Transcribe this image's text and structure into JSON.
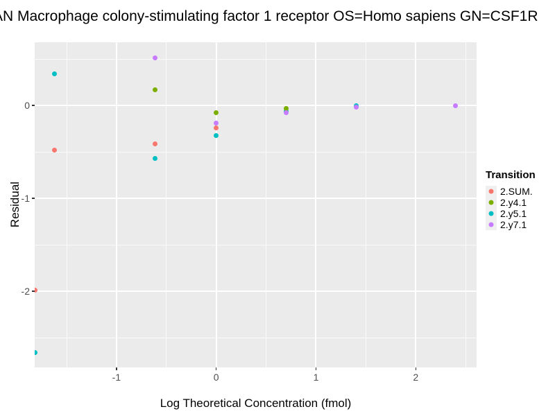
{
  "title": "AN Macrophage colony-stimulating factor 1 receptor OS=Homo sapiens GN=CSF1R",
  "chart_data": {
    "type": "scatter",
    "title": "AN Macrophage colony-stimulating factor 1 receptor OS=Homo sapiens GN=CSF1R",
    "xlabel": "Log Theoretical Concentration (fmol)",
    "ylabel": "Residual",
    "xlim": [
      -1.82,
      2.61
    ],
    "ylim": [
      -2.82,
      0.68
    ],
    "x_major_ticks": [
      -1,
      0,
      1,
      2
    ],
    "x_minor_ticks": [
      -1.5,
      -0.5,
      0.5,
      1.5,
      2.5
    ],
    "y_major_ticks": [
      0,
      -1,
      -2
    ],
    "y_minor_ticks": [
      0.5,
      -0.5,
      -1.5,
      -2.5
    ],
    "x_tick_labels": [
      "-1",
      "0",
      "1",
      "2"
    ],
    "y_tick_labels": [
      "0",
      "-1",
      "-2"
    ],
    "grid": true,
    "panel_background": "#EBEBEB",
    "grid_color": "#FFFFFF",
    "legend_position": "right",
    "draw_order": [
      0,
      2,
      1,
      3
    ],
    "series": [
      {
        "name": "2.SUM.",
        "color": "#F8766D",
        "points": [
          [
            -1.82,
            -1.99
          ],
          [
            -1.62,
            -0.48
          ],
          [
            -0.61,
            -0.41
          ],
          [
            0,
            -0.24
          ]
        ]
      },
      {
        "name": "2.y4.1",
        "color": "#7CAE00",
        "points": [
          [
            -0.61,
            0.17
          ],
          [
            0,
            -0.08
          ],
          [
            0.7,
            -0.03
          ]
        ]
      },
      {
        "name": "2.y5.1",
        "color": "#00BFC4",
        "points": [
          [
            -1.82,
            -2.66
          ],
          [
            -1.62,
            0.34
          ],
          [
            -0.61,
            -0.57
          ],
          [
            0,
            -0.32
          ],
          [
            0.7,
            -0.06
          ],
          [
            1.4,
            0
          ]
        ]
      },
      {
        "name": "2.y7.1",
        "color": "#C77CFF",
        "points": [
          [
            -0.61,
            0.51
          ],
          [
            0,
            -0.19
          ],
          [
            0.7,
            -0.08
          ],
          [
            1.4,
            -0.02
          ],
          [
            2.4,
            0
          ]
        ]
      }
    ]
  },
  "legend": {
    "title": "Transition",
    "key_background": "#F0F0F0",
    "items": [
      {
        "label": "2.SUM.",
        "color": "#F8766D"
      },
      {
        "label": "2.y4.1",
        "color": "#7CAE00"
      },
      {
        "label": "2.y5.1",
        "color": "#00BFC4"
      },
      {
        "label": "2.y7.1",
        "color": "#C77CFF"
      }
    ]
  },
  "colors": {
    "tick_label": "#4D4D4D",
    "tick_mark": "#333333",
    "axis_title": "#000000"
  }
}
